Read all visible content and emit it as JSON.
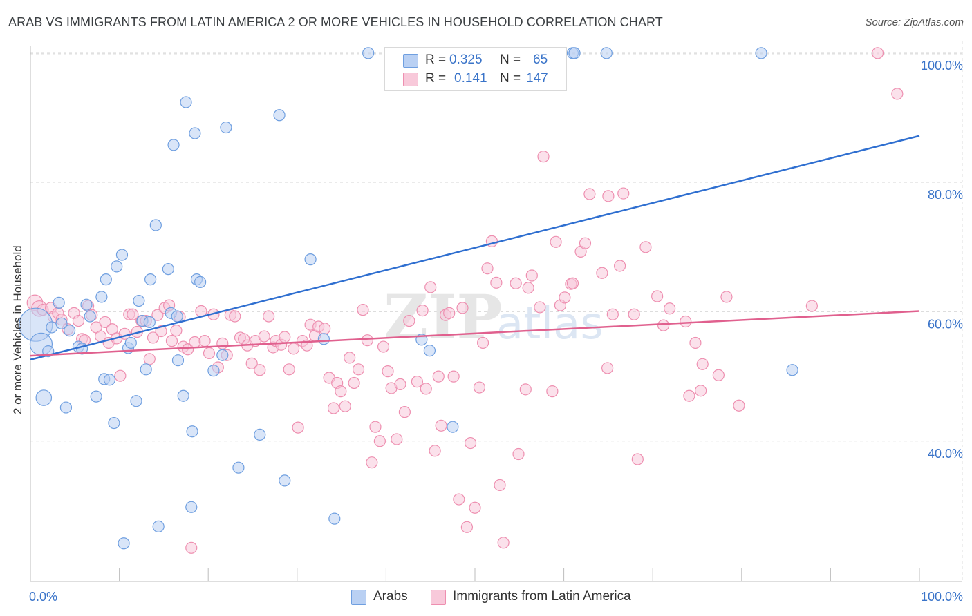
{
  "title": "ARAB VS IMMIGRANTS FROM LATIN AMERICA 2 OR MORE VEHICLES IN HOUSEHOLD CORRELATION CHART",
  "source": "Source: ZipAtlas.com",
  "watermark": "ZIPatlas",
  "colors": {
    "arabs": "#6f9fe0",
    "arabs_fill": "#b9d0f3",
    "arabs_line": "#2f6fd0",
    "latin": "#ee8fb0",
    "latin_fill": "#f8c9da",
    "latin_line": "#e0608e",
    "tick_label": "#3a74c9",
    "grid": "#dddddd"
  },
  "legend": {
    "row1": {
      "r_label": "R =",
      "r_value": "0.325",
      "n_label": "N =",
      "n_value": "65"
    },
    "row2": {
      "r_label": "R =",
      "r_value": "0.141",
      "n_label": "N =",
      "n_value": "147"
    }
  },
  "bottom_legend": {
    "arabs": "Arabs",
    "latin": "Immigrants from Latin America"
  },
  "chart_data": {
    "type": "scatter",
    "title": "ARAB VS IMMIGRANTS FROM LATIN AMERICA 2 OR MORE VEHICLES IN HOUSEHOLD CORRELATION CHART",
    "xlabel": "",
    "ylabel": "2 or more Vehicles in Household",
    "xlim": [
      0,
      100
    ],
    "ylim": [
      18.3,
      101.8
    ],
    "x_tick_labels": [
      "0.0%",
      "100.0%"
    ],
    "y_tick_labels": [
      "100.0%",
      "80.0%",
      "60.0%",
      "40.0%"
    ],
    "y_ticks": [
      100,
      80,
      60,
      40
    ],
    "grid": true,
    "legend_position": "top-center",
    "series": [
      {
        "name": "Arabs",
        "r": 0.325,
        "n": 65,
        "trend": [
          [
            0,
            52.6
          ],
          [
            100,
            87.2
          ]
        ],
        "points": [
          [
            0.6,
            58,
            3
          ],
          [
            1.2,
            55,
            2
          ],
          [
            1.5,
            46.7,
            1.4
          ],
          [
            2,
            53.9,
            1
          ],
          [
            2.4,
            57.6,
            1
          ],
          [
            3.2,
            61.4,
            1
          ],
          [
            3.5,
            58.2,
            1
          ],
          [
            4,
            45.2,
            1
          ],
          [
            4.4,
            57.1,
            1
          ],
          [
            5.4,
            54.6,
            1
          ],
          [
            5.8,
            54.3,
            1
          ],
          [
            6.3,
            61.1,
            1
          ],
          [
            6.7,
            59.3,
            1
          ],
          [
            7.4,
            46.9,
            1
          ],
          [
            8.3,
            49.6,
            1
          ],
          [
            8,
            62.3,
            1
          ],
          [
            8.5,
            65,
            1
          ],
          [
            8.9,
            49.5,
            1
          ],
          [
            9.4,
            42.8,
            1
          ],
          [
            9.7,
            67,
            1
          ],
          [
            10.3,
            68.8,
            1
          ],
          [
            10.5,
            24.2,
            1
          ],
          [
            11,
            54.4,
            1
          ],
          [
            11.3,
            55.2,
            1
          ],
          [
            11.9,
            46.2,
            1
          ],
          [
            12.2,
            61.7,
            1
          ],
          [
            12.6,
            58.6,
            1
          ],
          [
            13,
            51.1,
            1
          ],
          [
            13.5,
            65,
            1
          ],
          [
            14.1,
            73.4,
            1
          ],
          [
            13.4,
            58.4,
            1
          ],
          [
            14.4,
            26.8,
            1
          ],
          [
            15.5,
            66.6,
            1
          ],
          [
            15.8,
            59.8,
            1
          ],
          [
            16.1,
            85.8,
            1
          ],
          [
            16.5,
            59.3,
            1
          ],
          [
            16.6,
            52.5,
            1
          ],
          [
            17.2,
            47,
            1
          ],
          [
            17.5,
            92.4,
            1
          ],
          [
            18.1,
            29.8,
            1
          ],
          [
            18.2,
            41.5,
            1
          ],
          [
            18.5,
            87.6,
            1
          ],
          [
            18.7,
            65,
            1
          ],
          [
            19.1,
            64.6,
            1
          ],
          [
            20.6,
            50.9,
            1
          ],
          [
            21.6,
            53.3,
            1
          ],
          [
            22,
            88.5,
            1
          ],
          [
            23.4,
            35.9,
            1
          ],
          [
            25.8,
            41,
            1
          ],
          [
            28,
            90.4,
            1
          ],
          [
            28.6,
            33.9,
            1
          ],
          [
            31.5,
            68.1,
            1
          ],
          [
            33,
            55.8,
            1
          ],
          [
            34.2,
            28,
            1
          ],
          [
            38,
            100,
            1
          ],
          [
            44,
            55.7,
            1
          ],
          [
            44.9,
            54,
            1
          ],
          [
            47.5,
            42.2,
            1
          ],
          [
            49.9,
            100,
            1
          ],
          [
            51.2,
            100,
            1
          ],
          [
            61,
            100,
            1
          ],
          [
            61.2,
            100,
            1
          ],
          [
            64.8,
            100,
            1
          ],
          [
            85.7,
            51,
            1
          ],
          [
            82.2,
            100,
            1
          ]
        ]
      },
      {
        "name": "Immigrants from Latin America",
        "r": 0.141,
        "n": 147,
        "trend": [
          [
            0,
            53.2
          ],
          [
            100,
            60.1
          ]
        ],
        "points": [
          [
            0.5,
            61.4,
            1.4
          ],
          [
            1,
            60.5,
            1.4
          ],
          [
            1.4,
            60.3,
            1
          ],
          [
            2.3,
            60.6,
            1
          ],
          [
            2.6,
            59.2,
            1
          ],
          [
            3.1,
            59.8,
            1
          ],
          [
            3.5,
            58.8,
            1
          ],
          [
            4.2,
            57.3,
            1
          ],
          [
            4.9,
            59.8,
            1
          ],
          [
            5.4,
            58.6,
            1
          ],
          [
            5.8,
            55.8,
            1
          ],
          [
            6.1,
            55.6,
            1
          ],
          [
            6.5,
            60.9,
            1
          ],
          [
            6.9,
            59.5,
            1
          ],
          [
            7.4,
            57.6,
            1
          ],
          [
            7.9,
            56.2,
            1
          ],
          [
            8.4,
            58.4,
            1
          ],
          [
            8.8,
            55.2,
            1
          ],
          [
            9.2,
            57.3,
            1
          ],
          [
            9.7,
            55.9,
            1
          ],
          [
            10.1,
            50.1,
            1
          ],
          [
            10.6,
            56.6,
            1
          ],
          [
            11.1,
            59.6,
            1
          ],
          [
            11.5,
            59.6,
            1
          ],
          [
            12,
            56.9,
            1
          ],
          [
            12.5,
            58.6,
            1
          ],
          [
            13,
            58.6,
            1
          ],
          [
            13.4,
            52.7,
            1
          ],
          [
            13.8,
            56,
            1
          ],
          [
            14.3,
            59.5,
            1
          ],
          [
            14.7,
            57,
            1
          ],
          [
            15.1,
            60.6,
            1
          ],
          [
            15.6,
            61,
            1
          ],
          [
            15.9,
            55.5,
            1
          ],
          [
            16.4,
            57.1,
            1
          ],
          [
            16.8,
            59.2,
            1
          ],
          [
            17.2,
            54.6,
            1
          ],
          [
            17.7,
            54.2,
            1
          ],
          [
            18.1,
            23.5,
            1
          ],
          [
            18.5,
            55.3,
            1
          ],
          [
            19.2,
            60.1,
            1
          ],
          [
            19.6,
            55.5,
            1
          ],
          [
            20.1,
            53.6,
            1
          ],
          [
            20.6,
            59.6,
            1
          ],
          [
            21.1,
            51.4,
            1
          ],
          [
            21.6,
            55.1,
            1
          ],
          [
            22.1,
            53.3,
            1
          ],
          [
            22.5,
            59.5,
            1
          ],
          [
            23,
            59.3,
            1
          ],
          [
            23.6,
            56,
            1
          ],
          [
            24,
            55.8,
            1
          ],
          [
            24.4,
            54.8,
            1
          ],
          [
            24.9,
            52,
            1
          ],
          [
            25.3,
            55.5,
            1
          ],
          [
            25.8,
            51,
            1
          ],
          [
            26.3,
            56.2,
            1
          ],
          [
            26.8,
            59.3,
            1
          ],
          [
            27.3,
            54.5,
            1
          ],
          [
            27.6,
            55.5,
            1
          ],
          [
            28.2,
            54.9,
            1
          ],
          [
            28.6,
            56.1,
            1
          ],
          [
            29.1,
            51.1,
            1
          ],
          [
            29.6,
            54.3,
            1
          ],
          [
            30.1,
            42.1,
            1
          ],
          [
            30.6,
            55.5,
            1
          ],
          [
            31.1,
            54.8,
            1
          ],
          [
            31.5,
            58,
            1
          ],
          [
            32,
            56.3,
            1
          ],
          [
            32.4,
            57.7,
            1
          ],
          [
            33.1,
            57.4,
            1
          ],
          [
            33.6,
            49.8,
            1
          ],
          [
            34.1,
            45.1,
            1
          ],
          [
            34.5,
            49,
            1
          ],
          [
            34.9,
            47.7,
            1
          ],
          [
            35.4,
            45.4,
            1
          ],
          [
            35.9,
            52.9,
            1
          ],
          [
            36.4,
            49,
            1
          ],
          [
            36.9,
            51.1,
            1
          ],
          [
            37.4,
            60.3,
            1
          ],
          [
            37.9,
            55.6,
            1
          ],
          [
            38.4,
            36.7,
            1
          ],
          [
            38.8,
            42.2,
            1
          ],
          [
            39.3,
            40,
            1
          ],
          [
            39.7,
            54.6,
            1
          ],
          [
            40.2,
            50.8,
            1
          ],
          [
            40.6,
            48.2,
            1
          ],
          [
            41.2,
            40.3,
            1
          ],
          [
            41.6,
            48.8,
            1
          ],
          [
            42.1,
            44.5,
            1
          ],
          [
            42.6,
            58.6,
            1
          ],
          [
            43.5,
            49.2,
            1
          ],
          [
            44.1,
            60.2,
            1
          ],
          [
            44.5,
            48.1,
            1
          ],
          [
            45,
            63.8,
            1
          ],
          [
            45.5,
            38.5,
            1
          ],
          [
            45.9,
            50,
            1
          ],
          [
            46.2,
            42.4,
            1
          ],
          [
            46.7,
            59.5,
            1
          ],
          [
            47.1,
            59.8,
            1
          ],
          [
            47.6,
            50,
            1
          ],
          [
            48.2,
            31,
            1
          ],
          [
            48.6,
            60.6,
            1
          ],
          [
            49.1,
            26.7,
            1
          ],
          [
            49.5,
            39.7,
            1
          ],
          [
            50,
            29.7,
            1
          ],
          [
            50.5,
            48.3,
            1
          ],
          [
            50.9,
            55.2,
            1
          ],
          [
            51.4,
            66.7,
            1
          ],
          [
            51.9,
            70.9,
            1
          ],
          [
            52.4,
            64.5,
            1
          ],
          [
            52.8,
            33.2,
            1
          ],
          [
            53.2,
            24.3,
            1
          ],
          [
            54.6,
            64.4,
            1
          ],
          [
            54.9,
            38,
            1
          ],
          [
            55.7,
            48,
            1
          ],
          [
            56,
            63.7,
            1
          ],
          [
            56.4,
            65.6,
            1
          ],
          [
            57.3,
            60.7,
            1
          ],
          [
            57.7,
            84,
            1
          ],
          [
            58.7,
            47.7,
            1
          ],
          [
            59.1,
            70.8,
            1
          ],
          [
            59.6,
            61,
            1
          ],
          [
            60.1,
            62.2,
            1
          ],
          [
            60.8,
            64.3,
            1
          ],
          [
            61,
            64.4,
            1
          ],
          [
            61.9,
            69.3,
            1
          ],
          [
            62.4,
            70.6,
            1
          ],
          [
            62.9,
            78.2,
            1
          ],
          [
            64.3,
            66,
            1
          ],
          [
            64.9,
            51.3,
            1
          ],
          [
            65,
            77.9,
            1
          ],
          [
            65.5,
            59.6,
            1
          ],
          [
            66.3,
            67.1,
            1
          ],
          [
            66.7,
            78.3,
            1
          ],
          [
            67.9,
            59.6,
            1
          ],
          [
            68.3,
            37.2,
            1
          ],
          [
            69.2,
            70,
            1
          ],
          [
            70.5,
            62.4,
            1
          ],
          [
            71.2,
            57.9,
            1
          ],
          [
            71.9,
            60.5,
            1
          ],
          [
            73.7,
            58.5,
            1
          ],
          [
            74.1,
            47,
            1
          ],
          [
            74.8,
            55.2,
            1
          ],
          [
            75.4,
            47.8,
            1
          ],
          [
            75.6,
            51.9,
            1
          ],
          [
            77.4,
            50.2,
            1
          ],
          [
            78.3,
            62.3,
            1
          ],
          [
            79.7,
            45.5,
            1
          ],
          [
            87.9,
            60.9,
            1
          ],
          [
            95.3,
            100,
            1
          ],
          [
            97.5,
            93.7,
            1
          ]
        ]
      }
    ]
  }
}
